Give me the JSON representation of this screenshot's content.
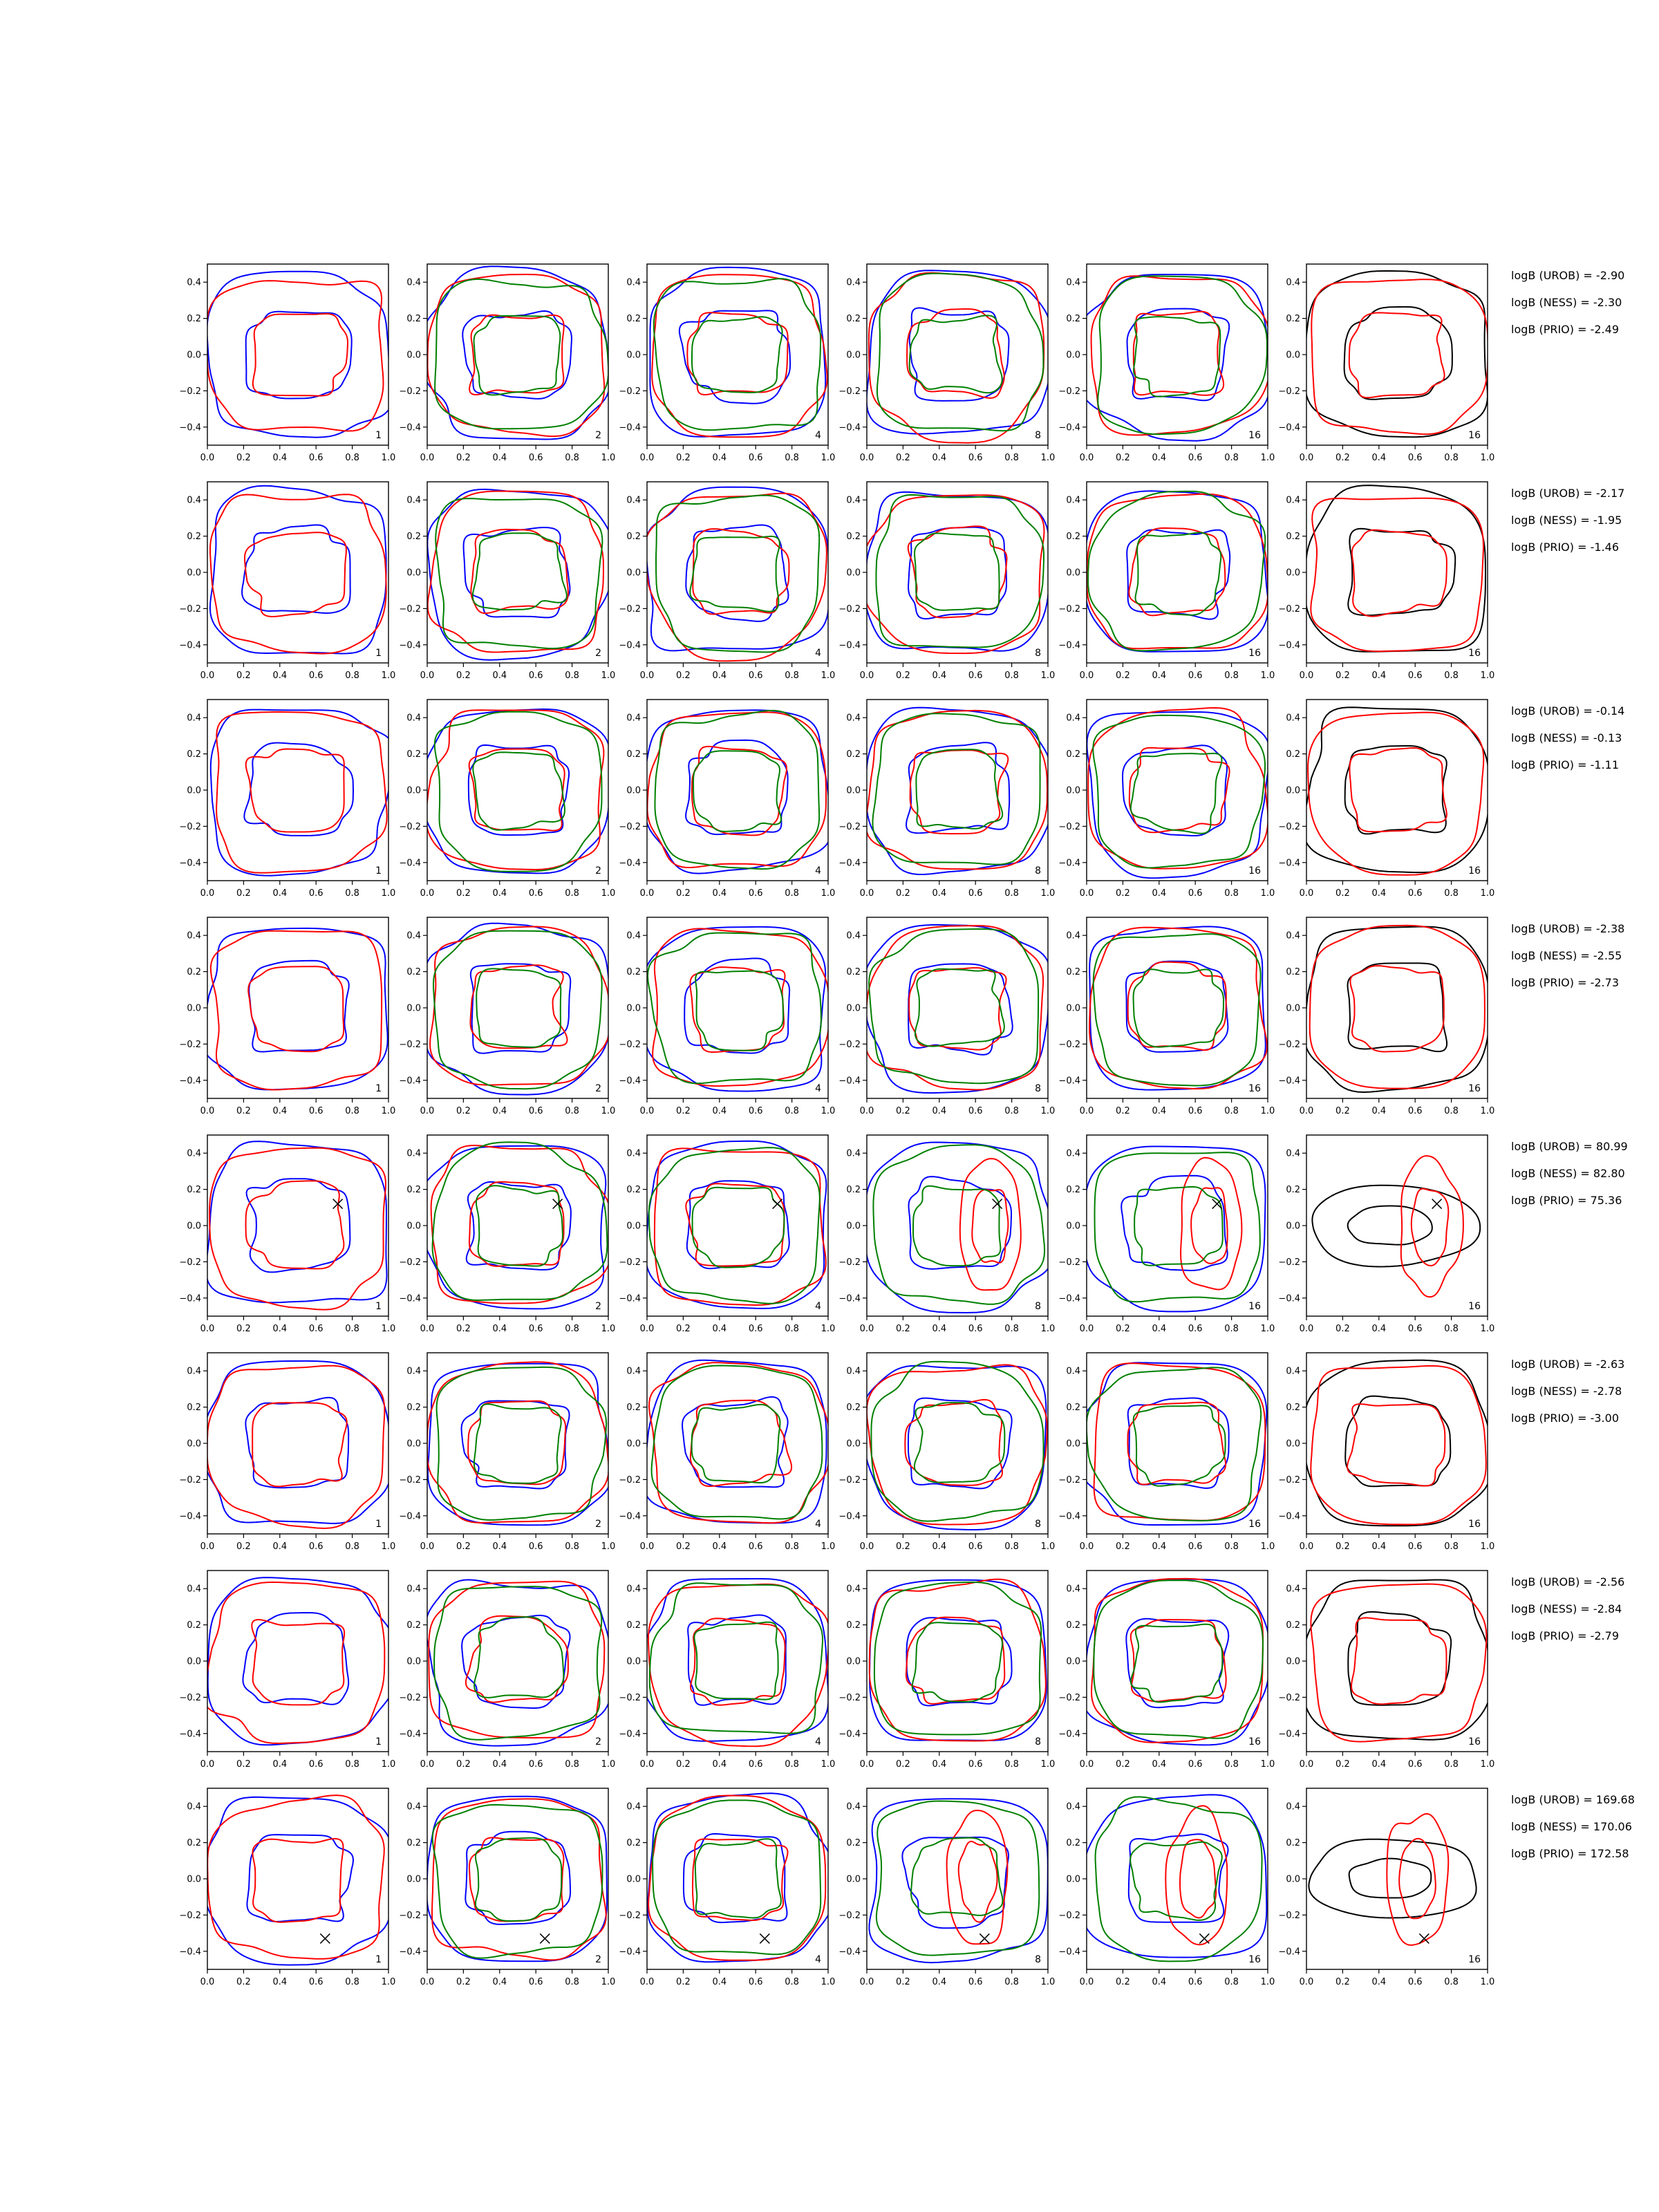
{
  "chart_data": {
    "type": "contour",
    "description_grid": {
      "rows": 8,
      "cols": 6
    },
    "xlim": [
      0.0,
      1.0
    ],
    "ylim": [
      -0.5,
      0.5
    ],
    "x_ticks": [
      "0.0",
      "0.2",
      "0.4",
      "0.6",
      "0.8",
      "1.0"
    ],
    "y_ticks": [
      "0.4",
      "0.2",
      "0.0",
      "−0.2",
      "−0.4"
    ],
    "x_tick_values": [
      0.0,
      0.2,
      0.4,
      0.6,
      0.8,
      1.0
    ],
    "y_tick_values": [
      0.4,
      0.2,
      0.0,
      -0.2,
      -0.4
    ],
    "column_labels": [
      "1",
      "2",
      "4",
      "8",
      "16",
      "16"
    ],
    "colors": {
      "blue": "#0000ff",
      "red": "#ff0000",
      "green": "#008000",
      "black": "#000000"
    },
    "column_series_colors": [
      [
        "blue",
        "red"
      ],
      [
        "blue",
        "red",
        "green"
      ],
      [
        "blue",
        "red",
        "green"
      ],
      [
        "blue",
        "red",
        "green"
      ],
      [
        "blue",
        "red",
        "green"
      ],
      [
        "black",
        "red"
      ]
    ],
    "rows": [
      {
        "marker": null,
        "stats": [
          "logB (UROB) = -2.90",
          "logB (NESS) = -2.30",
          "logB (PRIO) = -2.49"
        ]
      },
      {
        "marker": null,
        "stats": [
          "logB (UROB) = -2.17",
          "logB (NESS) = -1.95",
          "logB (PRIO) = -1.46"
        ]
      },
      {
        "marker": null,
        "stats": [
          "logB (UROB) = -0.14",
          "logB (NESS) = -0.13",
          "logB (PRIO) = -1.11"
        ]
      },
      {
        "marker": null,
        "stats": [
          "logB (UROB) = -2.38",
          "logB (NESS) = -2.55",
          "logB (PRIO) = -2.73"
        ]
      },
      {
        "marker": {
          "x": 0.72,
          "y": 0.12
        },
        "stats": [
          "logB (UROB) = 80.99",
          "logB (NESS) = 82.80",
          "logB (PRIO) = 75.36"
        ]
      },
      {
        "marker": null,
        "stats": [
          "logB (UROB) = -2.63",
          "logB (NESS) = -2.78",
          "logB (PRIO) = -3.00"
        ]
      },
      {
        "marker": null,
        "stats": [
          "logB (UROB) = -2.56",
          "logB (NESS) = -2.84",
          "logB (PRIO) = -2.79"
        ]
      },
      {
        "marker": {
          "x": 0.65,
          "y": -0.33
        },
        "stats": [
          "logB (UROB) = 169.68",
          "logB (NESS) = 170.06",
          "logB (PRIO) = 172.58"
        ]
      }
    ]
  }
}
